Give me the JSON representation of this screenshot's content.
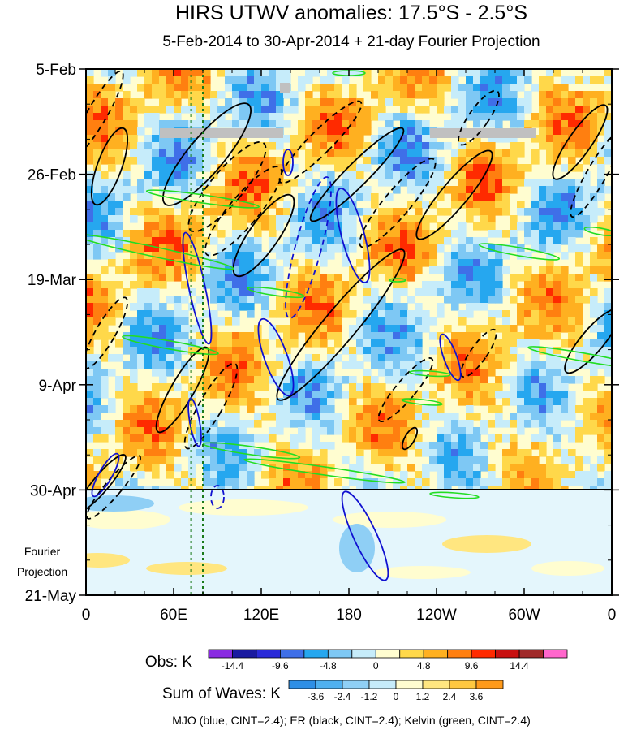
{
  "chart_data": {
    "type": "heatmap",
    "title": "HIRS UTWV anomalies: 17.5°S - 2.5°S",
    "subtitle": "5-Feb-2014 to 30-Apr-2014 + 21-day Fourier Projection",
    "y_ticks": [
      "5-Feb",
      "26-Feb",
      "19-Mar",
      "9-Apr",
      "30-Apr",
      "21-May"
    ],
    "y_values": [
      "2014-02-05",
      "2014-02-26",
      "2014-03-19",
      "2014-04-09",
      "2014-04-30",
      "2014-05-21"
    ],
    "y_range": [
      "2014-02-05",
      "2014-05-21"
    ],
    "x_ticks": [
      "0",
      "60E",
      "120E",
      "180",
      "120W",
      "60W",
      "0"
    ],
    "x_values": [
      0,
      60,
      120,
      180,
      240,
      300,
      360
    ],
    "x_range": [
      0,
      360
    ],
    "projection_label": [
      "Fourier",
      "Projection"
    ],
    "projection_start": "2014-04-30",
    "obs_legend": {
      "title": "Obs: K",
      "labels": [
        "-14.4",
        "-9.6",
        "-4.8",
        "0",
        "4.8",
        "9.6",
        "14.4"
      ],
      "colors": [
        "#8a2be2",
        "#1a1aa0",
        "#2a2ad8",
        "#3f6fe8",
        "#26a7ef",
        "#7ec8f4",
        "#c6ecfa",
        "#fffdd0",
        "#ffd84a",
        "#ffb020",
        "#ff7f10",
        "#ff2a00",
        "#c81010",
        "#a02a2a",
        "#ff66cc"
      ]
    },
    "waves_legend": {
      "title": "Sum of Waves: K",
      "labels": [
        "-3.6",
        "-2.4",
        "-1.2",
        "0",
        "1.2",
        "2.4",
        "3.6"
      ],
      "colors": [
        "#2e8fe6",
        "#4fb0ef",
        "#8fcff5",
        "#c6ecfa",
        "#fffdd0",
        "#ffe680",
        "#ffc840",
        "#ff9a1a"
      ]
    },
    "caption": "MJO (blue, CINT=2.4); ER (black, CINT=2.4); Kelvin (green, CINT=2.4)",
    "contour_colors": {
      "MJO": "#1010d0",
      "ER": "#000000",
      "Kelvin": "#22dd22"
    },
    "reference_lines_lon": [
      72,
      80
    ],
    "missing_data_color": "#c0c0c0"
  }
}
